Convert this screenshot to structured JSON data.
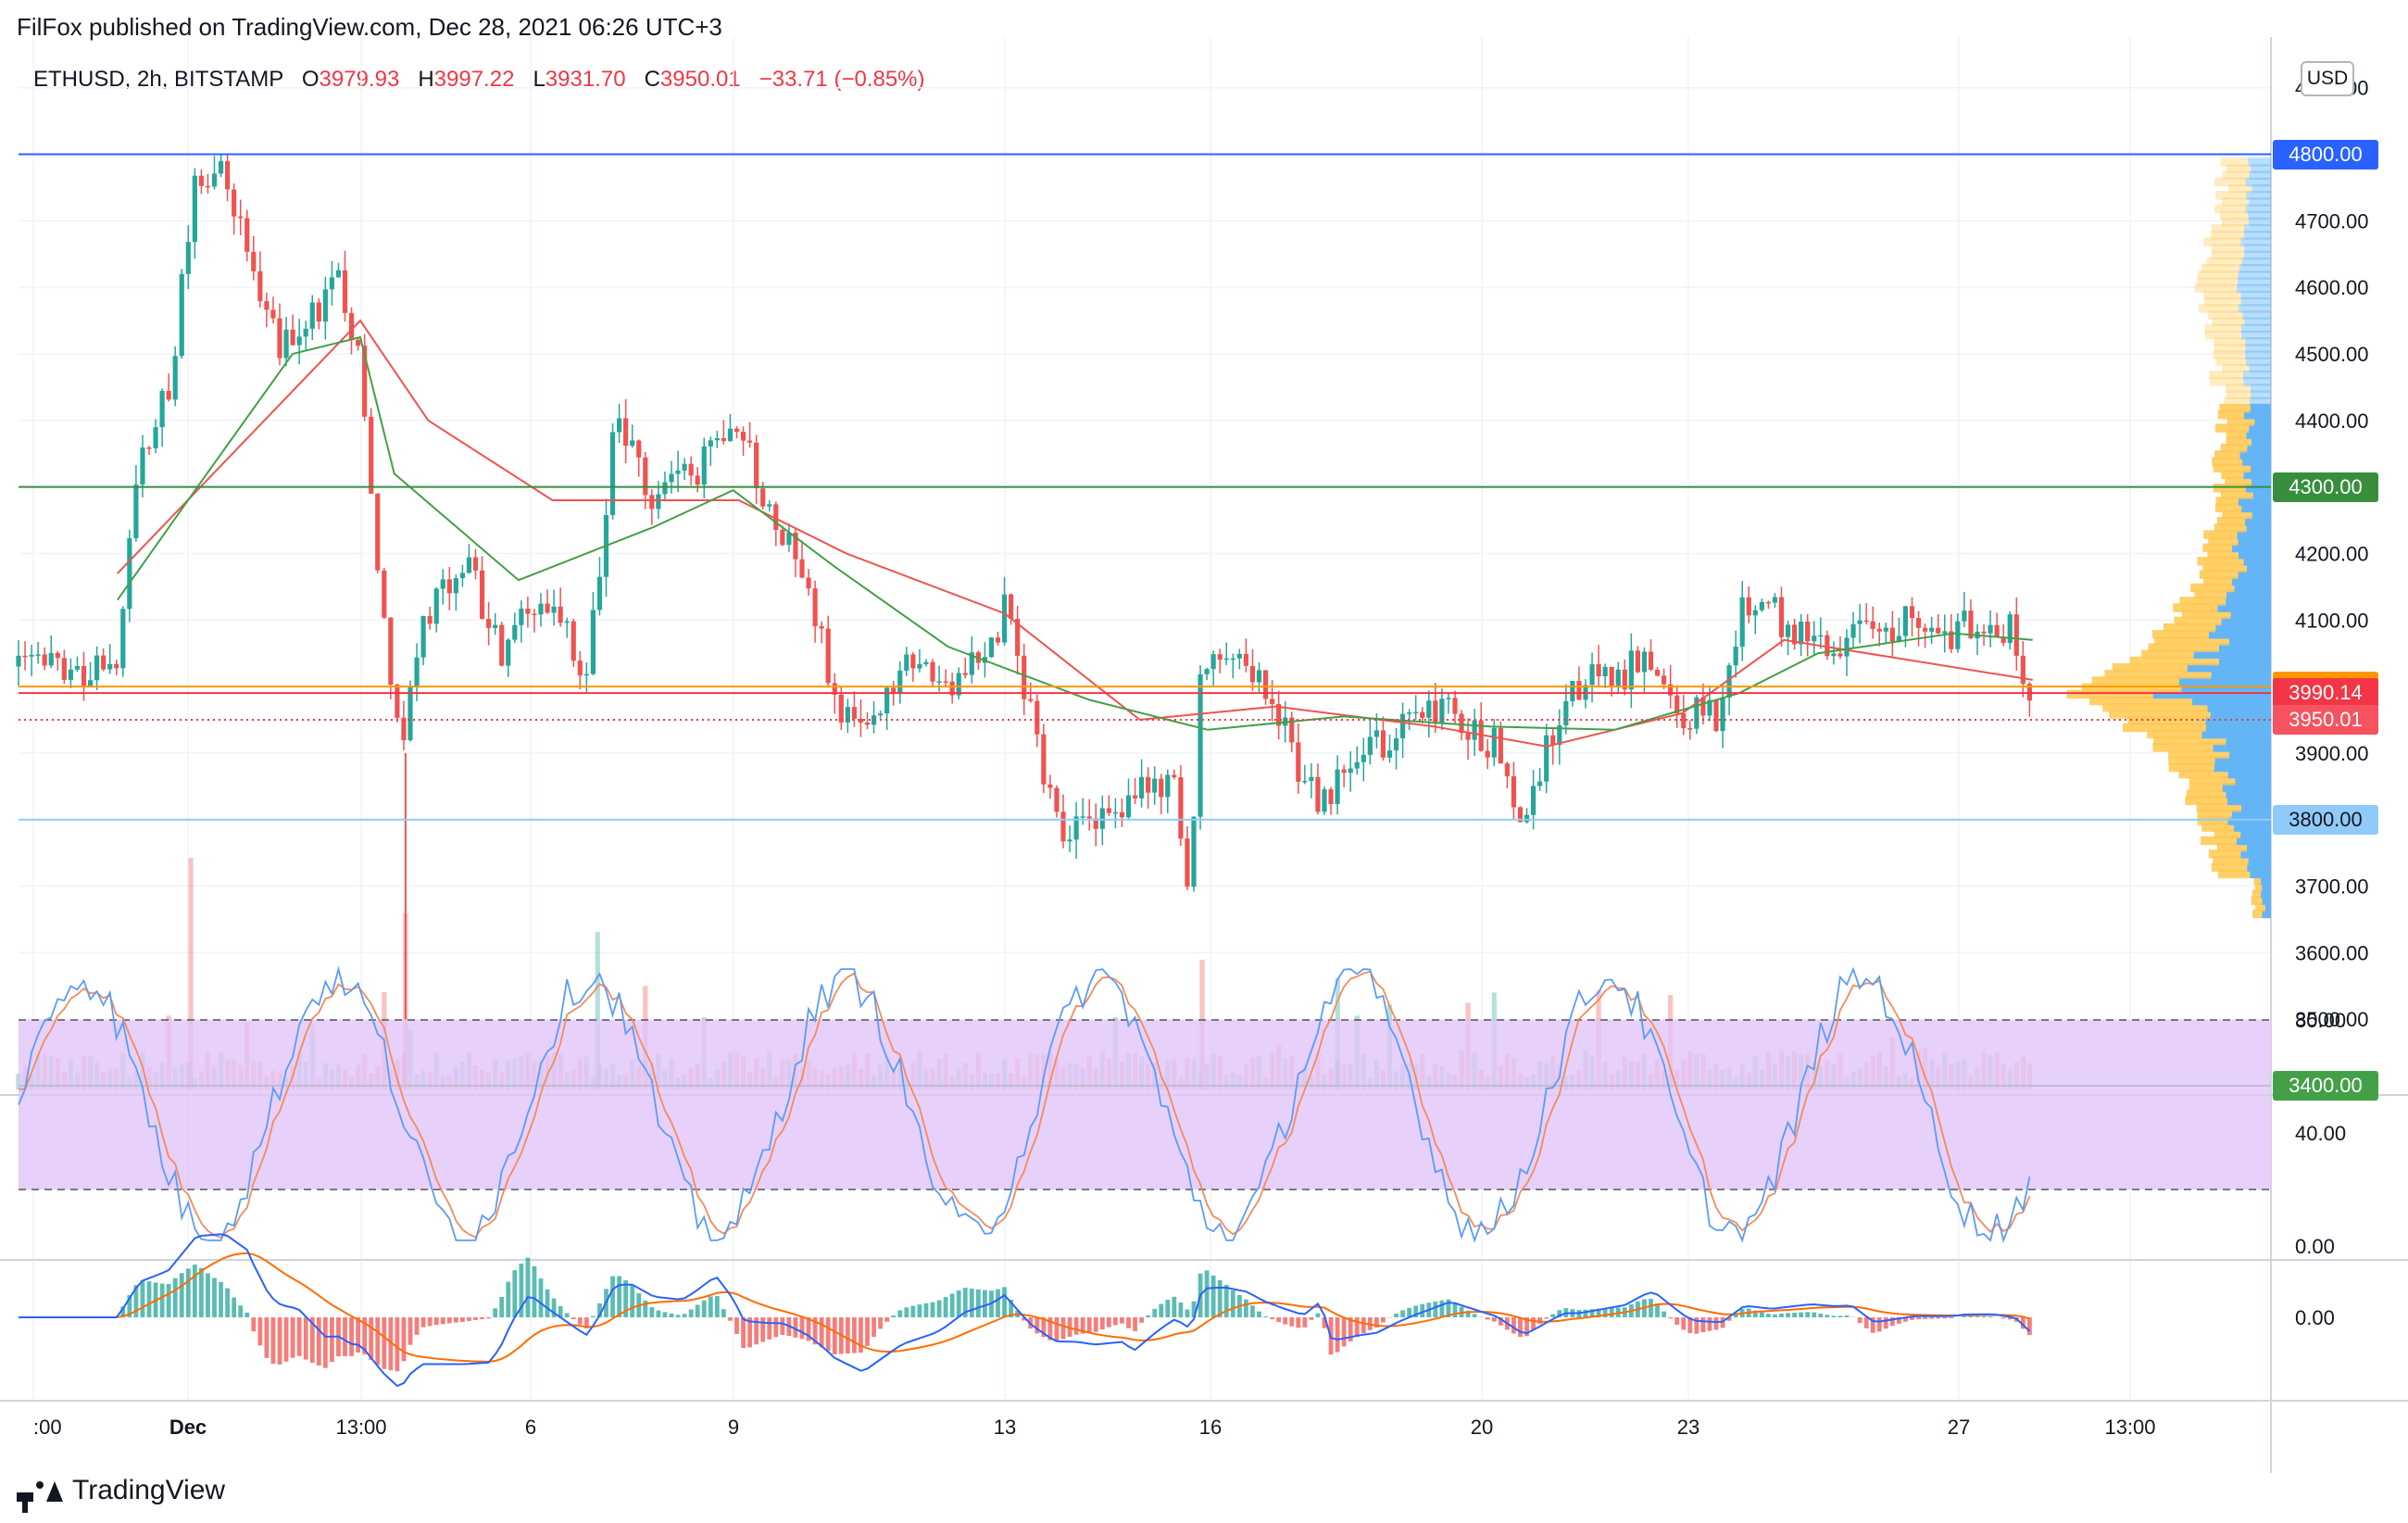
{
  "header": {
    "publish_line": "FilFox published on TradingView.com, Dec 28, 2021 06:26 UTC+3",
    "symbol_line": "ETHUSD, 2h, BITSTAMP",
    "open_label": "O",
    "open_value": "3979.93",
    "high_label": "H",
    "high_value": "3997.22",
    "low_label": "L",
    "low_value": "3931.70",
    "close_label": "C",
    "close_value": "3950.01",
    "change": "−33.71 (−0.85%)"
  },
  "price_axis": {
    "currency": "USD",
    "ticks": [
      "4900.00",
      "4700.00",
      "4600.00",
      "4500.00",
      "4400.00",
      "4200.00",
      "4100.00",
      "3900.00",
      "3700.00",
      "3600.00",
      "3500.00"
    ]
  },
  "price_tags": [
    {
      "label": "4800.00",
      "value": 4800,
      "bg": "#2962ff",
      "fg": "#ffffff"
    },
    {
      "label": "4300.00",
      "value": 4300,
      "bg": "#388e3c",
      "fg": "#ffffff"
    },
    {
      "label": "4000.00",
      "value": 4000,
      "bg": "#ff9800",
      "fg": "#131722"
    },
    {
      "label": "3990.14",
      "value": 3990.14,
      "bg": "#f23645",
      "fg": "#ffffff"
    },
    {
      "label": "3950.01",
      "value": 3950.01,
      "bg": "#f7525f",
      "fg": "#ffffff"
    },
    {
      "label": "3800.00",
      "value": 3800,
      "bg": "#90caf9",
      "fg": "#131722"
    },
    {
      "label": "3400.00",
      "value": 3400,
      "bg": "#43a047",
      "fg": "#ffffff"
    }
  ],
  "stoch_axis": {
    "ticks": [
      "80.00",
      "40.00",
      "0.00"
    ]
  },
  "macd_axis": {
    "ticks": [
      "0.00"
    ]
  },
  "time_axis": {
    "labels": [
      ":00",
      "Dec",
      "13:00",
      "6",
      "9",
      "13",
      "16",
      "20",
      "23",
      "27",
      "13:00"
    ]
  },
  "footer": {
    "brand": "TradingView"
  },
  "colors": {
    "up": "#26a69a",
    "down": "#ef5350",
    "ma_fast": "#ef5350",
    "ma_slow": "#43a047",
    "stoch_k": "#5b9cf6",
    "stoch_d": "#f48b5b",
    "stoch_band": "#e1c4f7",
    "macd_line": "#2962ff",
    "signal_line": "#ff6d00",
    "vp_up": "#64b5f6",
    "vp_down": "#ffc850"
  },
  "chart_data": {
    "type": "candlestick",
    "symbol": "ETHUSD",
    "interval": "2h",
    "exchange": "BITSTAMP",
    "ylim": [
      3350,
      4950
    ],
    "horizontal_levels": [
      4800,
      4300,
      4000,
      3990.14,
      3950.01,
      3800,
      3400
    ],
    "price_path": [
      {
        "date": "Nov 29 23:00",
        "price": 4030
      },
      {
        "date": "Nov 30 07:00",
        "price": 4350
      },
      {
        "date": "Nov 30 17:00",
        "price": 4450
      },
      {
        "date": "Dec 1 03:00",
        "price": 4760
      },
      {
        "date": "Dec 1 13:00",
        "price": 4780
      },
      {
        "date": "Dec 1 23:00",
        "price": 4600
      },
      {
        "date": "Dec 2 09:00",
        "price": 4500
      },
      {
        "date": "Dec 2 19:00",
        "price": 4550
      },
      {
        "date": "Dec 3 05:00",
        "price": 4600
      },
      {
        "date": "Dec 3 13:00",
        "price": 4500
      },
      {
        "date": "Dec 3 21:00",
        "price": 4100
      },
      {
        "date": "Dec 4 03:00",
        "price": 3900
      },
      {
        "date": "Dec 4 11:00",
        "price": 4100
      },
      {
        "date": "Dec 5 03:00",
        "price": 4180
      },
      {
        "date": "Dec 5 15:00",
        "price": 4050
      },
      {
        "date": "Dec 6 09:00",
        "price": 4150
      },
      {
        "date": "Dec 6 21:00",
        "price": 4000
      },
      {
        "date": "Dec 7 07:00",
        "price": 4400
      },
      {
        "date": "Dec 7 21:00",
        "price": 4280
      },
      {
        "date": "Dec 8 11:00",
        "price": 4320
      },
      {
        "date": "Dec 9 01:00",
        "price": 4410
      },
      {
        "date": "Dec 9 13:00",
        "price": 4280
      },
      {
        "date": "Dec 10 03:00",
        "price": 4150
      },
      {
        "date": "Dec 10 13:00",
        "price": 3980
      },
      {
        "date": "Dec 10 23:00",
        "price": 3920
      },
      {
        "date": "Dec 11 13:00",
        "price": 4020
      },
      {
        "date": "Dec 12 05:00",
        "price": 4010
      },
      {
        "date": "Dec 12 21:00",
        "price": 4050
      },
      {
        "date": "Dec 13 01:00",
        "price": 4150
      },
      {
        "date": "Dec 13 09:00",
        "price": 3980
      },
      {
        "date": "Dec 13 19:00",
        "price": 3800
      },
      {
        "date": "Dec 14 09:00",
        "price": 3780
      },
      {
        "date": "Dec 14 23:00",
        "price": 3850
      },
      {
        "date": "Dec 15 13:00",
        "price": 3850
      },
      {
        "date": "Dec 15 19:00",
        "price": 3680
      },
      {
        "date": "Dec 15 23:00",
        "price": 4050
      },
      {
        "date": "Dec 16 15:00",
        "price": 4050
      },
      {
        "date": "Dec 17 05:00",
        "price": 3920
      },
      {
        "date": "Dec 17 17:00",
        "price": 3820
      },
      {
        "date": "Dec 18 07:00",
        "price": 3890
      },
      {
        "date": "Dec 18 21:00",
        "price": 3940
      },
      {
        "date": "Dec 19 15:00",
        "price": 3960
      },
      {
        "date": "Dec 20 07:00",
        "price": 3910
      },
      {
        "date": "Dec 20 17:00",
        "price": 3780
      },
      {
        "date": "Dec 21 07:00",
        "price": 3990
      },
      {
        "date": "Dec 21 21:00",
        "price": 4010
      },
      {
        "date": "Dec 22 11:00",
        "price": 4030
      },
      {
        "date": "Dec 23 01:00",
        "price": 3960
      },
      {
        "date": "Dec 23 15:00",
        "price": 3960
      },
      {
        "date": "Dec 23 23:00",
        "price": 4120
      },
      {
        "date": "Dec 24 13:00",
        "price": 4100
      },
      {
        "date": "Dec 25 07:00",
        "price": 4060
      },
      {
        "date": "Dec 25 23:00",
        "price": 4080
      },
      {
        "date": "Dec 26 11:00",
        "price": 4110
      },
      {
        "date": "Dec 27 01:00",
        "price": 4080
      },
      {
        "date": "Dec 27 15:00",
        "price": 4100
      },
      {
        "date": "Dec 27 23:00",
        "price": 4080
      },
      {
        "date": "Dec 28 05:00",
        "price": 3950.01
      }
    ],
    "last_candle": {
      "open": 3979.93,
      "high": 3997.22,
      "low": 3931.7,
      "close": 3950.01
    },
    "moving_averages": [
      {
        "color": "#ef5350",
        "points": [
          {
            "date": "Nov 29 23:00",
            "price": 4170
          },
          {
            "date": "Dec 3 13:00",
            "price": 4550
          },
          {
            "date": "Dec 4 13:00",
            "price": 4400
          },
          {
            "date": "Dec 6 09:00",
            "price": 4280
          },
          {
            "date": "Dec 9 03:00",
            "price": 4280
          },
          {
            "date": "Dec 10 17:00",
            "price": 4200
          },
          {
            "date": "Dec 13 01:00",
            "price": 4110
          },
          {
            "date": "Dec 15 01:00",
            "price": 3950
          },
          {
            "date": "Dec 17 01:00",
            "price": 3970
          },
          {
            "date": "Dec 19 09:00",
            "price": 3940
          },
          {
            "date": "Dec 21 01:00",
            "price": 3910
          },
          {
            "date": "Dec 23 01:00",
            "price": 3960
          },
          {
            "date": "Dec 24 13:00",
            "price": 4070
          },
          {
            "date": "Dec 28 05:00",
            "price": 4010
          }
        ]
      },
      {
        "color": "#43a047",
        "points": [
          {
            "date": "Nov 29 23:00",
            "price": 4130
          },
          {
            "date": "Dec 1 05:00",
            "price": 4310
          },
          {
            "date": "Dec 2 13:00",
            "price": 4500
          },
          {
            "date": "Dec 3 13:00",
            "price": 4525
          },
          {
            "date": "Dec 4 01:00",
            "price": 4320
          },
          {
            "date": "Dec 5 21:00",
            "price": 4160
          },
          {
            "date": "Dec 7 21:00",
            "price": 4240
          },
          {
            "date": "Dec 9 01:00",
            "price": 4295
          },
          {
            "date": "Dec 10 13:00",
            "price": 4180
          },
          {
            "date": "Dec 12 05:00",
            "price": 4060
          },
          {
            "date": "Dec 14 07:00",
            "price": 3980
          },
          {
            "date": "Dec 16 01:00",
            "price": 3935
          },
          {
            "date": "Dec 18 01:00",
            "price": 3955
          },
          {
            "date": "Dec 20 05:00",
            "price": 3940
          },
          {
            "date": "Dec 22 01:00",
            "price": 3935
          },
          {
            "date": "Dec 23 21:00",
            "price": 3990
          },
          {
            "date": "Dec 25 01:00",
            "price": 4050
          },
          {
            "date": "Dec 27 01:00",
            "price": 4080
          },
          {
            "date": "Dec 28 05:00",
            "price": 4070
          }
        ]
      }
    ],
    "stochastic": {
      "ylim": [
        0,
        100
      ],
      "upper_band": 80,
      "lower_band": 20
    },
    "macd": {
      "zero_line": 0
    }
  }
}
